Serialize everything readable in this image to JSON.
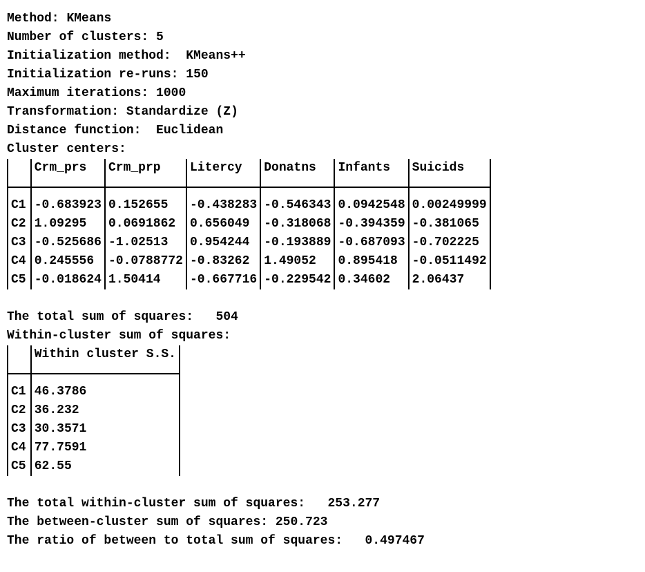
{
  "header": {
    "method_label": "Method:",
    "method_value": "KMeans",
    "nclusters_label": "Number of clusters:",
    "nclusters_value": "5",
    "init_method_label": "Initialization method:",
    "init_method_value": "KMeans++",
    "init_reruns_label": "Initialization re-runs:",
    "init_reruns_value": "150",
    "max_iter_label": "Maximum iterations:",
    "max_iter_value": "1000",
    "transform_label": "Transformation:",
    "transform_value": "Standardize (Z)",
    "distance_label": "Distance function:",
    "distance_value": "Euclidean",
    "centers_label": "Cluster centers:"
  },
  "centers": {
    "cols": [
      "Crm_prs",
      "Crm_prp",
      "Litercy",
      "Donatns",
      "Infants",
      "Suicids"
    ],
    "rows": [
      {
        "id": "C1",
        "v": [
          "-0.683923",
          "0.152655",
          "-0.438283",
          "-0.546343",
          "0.0942548",
          "0.00249999"
        ]
      },
      {
        "id": "C2",
        "v": [
          "1.09295",
          "0.0691862",
          "0.656049",
          "-0.318068",
          "-0.394359",
          "-0.381065"
        ]
      },
      {
        "id": "C3",
        "v": [
          "-0.525686",
          "-1.02513",
          "0.954244",
          "-0.193889",
          "-0.687093",
          "-0.702225"
        ]
      },
      {
        "id": "C4",
        "v": [
          "0.245556",
          "-0.0788772",
          "-0.83262",
          "1.49052",
          "0.895418",
          "-0.0511492"
        ]
      },
      {
        "id": "C5",
        "v": [
          "-0.018624",
          "1.50414",
          "-0.667716",
          "-0.229542",
          "0.34602",
          "2.06437"
        ]
      }
    ]
  },
  "totals": {
    "total_ss_label": "The total sum of squares:",
    "total_ss_value": "504",
    "within_header_label": "Within-cluster sum of squares:"
  },
  "within": {
    "col": "Within cluster S.S.",
    "rows": [
      {
        "id": "C1",
        "v": "46.3786"
      },
      {
        "id": "C2",
        "v": "36.232"
      },
      {
        "id": "C3",
        "v": "30.3571"
      },
      {
        "id": "C4",
        "v": "77.7591"
      },
      {
        "id": "C5",
        "v": "62.55"
      }
    ]
  },
  "summary": {
    "total_within_label": "The total within-cluster sum of squares:",
    "total_within_value": "253.277",
    "between_label": "The between-cluster sum of squares:",
    "between_value": "250.723",
    "ratio_label": "The ratio of between to total sum of squares:",
    "ratio_value": "0.497467"
  }
}
